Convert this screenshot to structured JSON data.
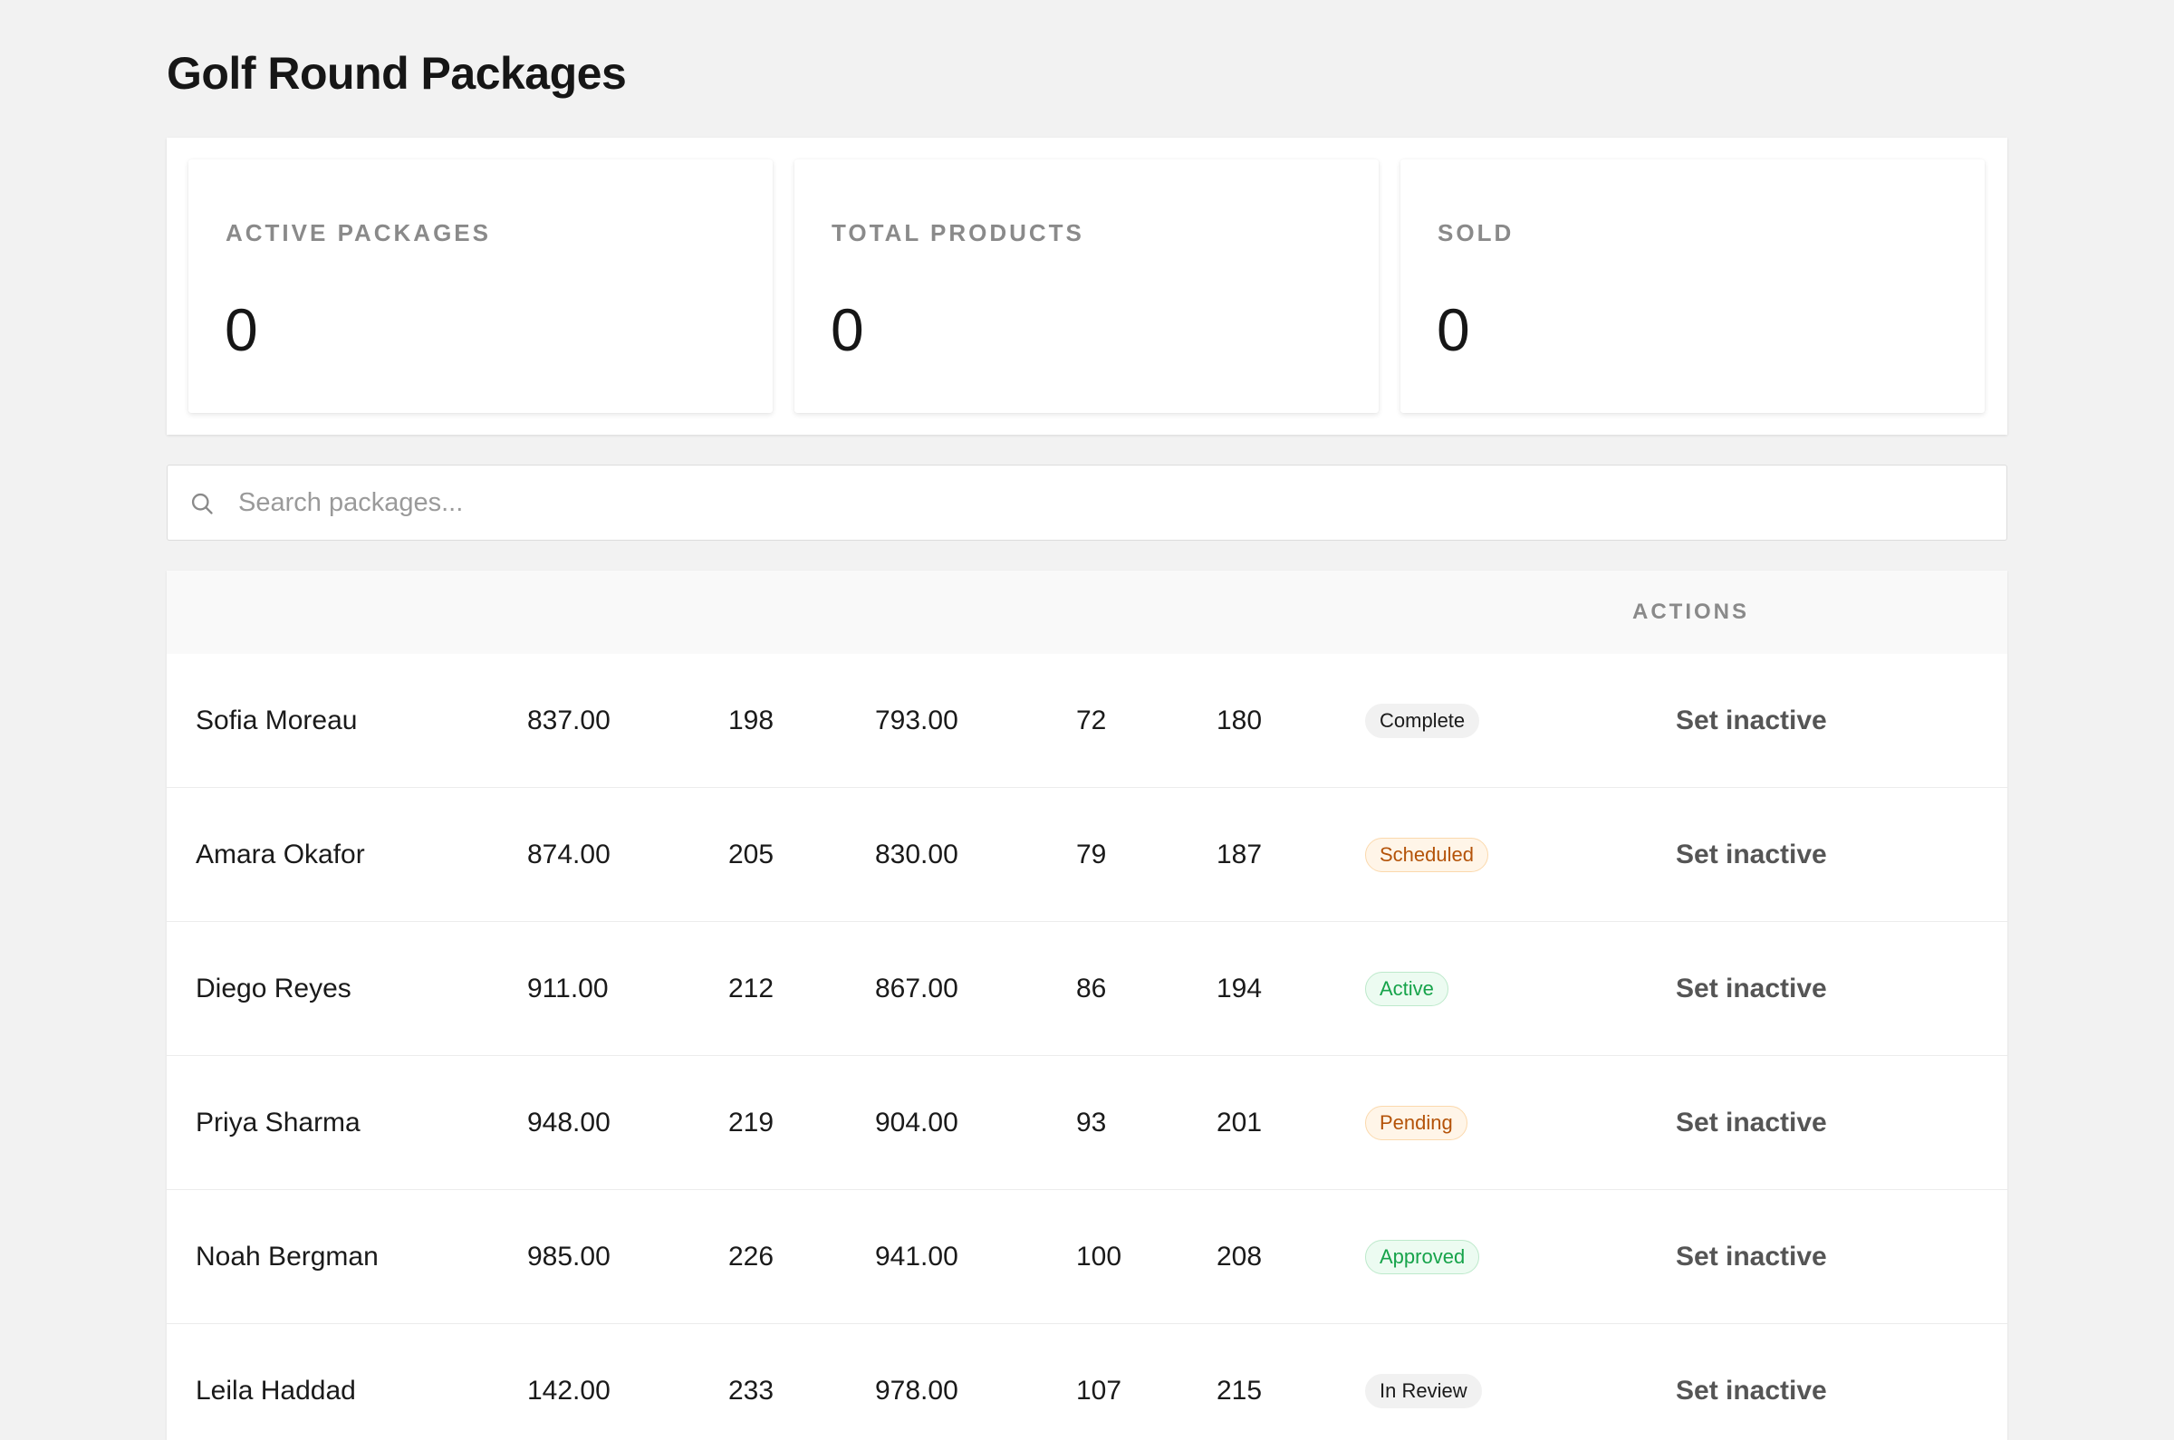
{
  "page": {
    "title": "Golf Round Packages"
  },
  "stats": [
    {
      "label": "ACTIVE PACKAGES",
      "value": "0"
    },
    {
      "label": "TOTAL PRODUCTS",
      "value": "0"
    },
    {
      "label": "SOLD",
      "value": "0"
    }
  ],
  "search": {
    "placeholder": "Search packages...",
    "value": "",
    "icon": "search-icon"
  },
  "table": {
    "header": {
      "actions": "ACTIONS"
    },
    "rows": [
      {
        "name": "Sofia Moreau",
        "col1": "837.00",
        "col2": "198",
        "col3": "793.00",
        "col4": "72",
        "col5": "180",
        "status": "Complete",
        "status_tone": "neutral",
        "action": "Set inactive"
      },
      {
        "name": "Amara Okafor",
        "col1": "874.00",
        "col2": "205",
        "col3": "830.00",
        "col4": "79",
        "col5": "187",
        "status": "Scheduled",
        "status_tone": "orange",
        "action": "Set inactive"
      },
      {
        "name": "Diego Reyes",
        "col1": "911.00",
        "col2": "212",
        "col3": "867.00",
        "col4": "86",
        "col5": "194",
        "status": "Active",
        "status_tone": "green",
        "action": "Set inactive"
      },
      {
        "name": "Priya Sharma",
        "col1": "948.00",
        "col2": "219",
        "col3": "904.00",
        "col4": "93",
        "col5": "201",
        "status": "Pending",
        "status_tone": "orange",
        "action": "Set inactive"
      },
      {
        "name": "Noah Bergman",
        "col1": "985.00",
        "col2": "226",
        "col3": "941.00",
        "col4": "100",
        "col5": "208",
        "status": "Approved",
        "status_tone": "green",
        "action": "Set inactive"
      },
      {
        "name": "Leila Haddad",
        "col1": "142.00",
        "col2": "233",
        "col3": "978.00",
        "col4": "107",
        "col5": "215",
        "status": "In Review",
        "status_tone": "neutral",
        "action": "Set inactive"
      }
    ]
  },
  "colors": {
    "background": "#f2f2f2",
    "status_orange": "#b45309",
    "status_green": "#16a34a"
  }
}
